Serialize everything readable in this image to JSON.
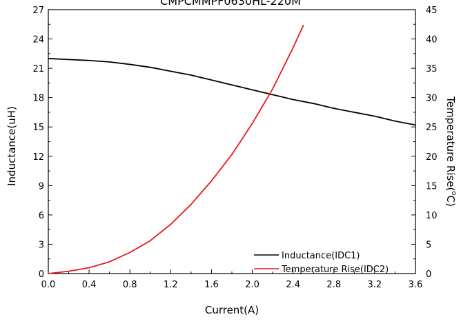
{
  "chart_data": {
    "type": "line",
    "title": "CMPCMMPF0630HL-220M",
    "xlabel": "Current(A)",
    "ylabel_left": "Inductance(uH)",
    "ylabel_right_main": "Temperature Rise(",
    "ylabel_right_sup": "o",
    "ylabel_right_end": "C)",
    "xlim": [
      0,
      3.6
    ],
    "ylim_left": [
      0,
      27
    ],
    "ylim_right": [
      0,
      45
    ],
    "x_ticks": [
      0.0,
      0.4,
      0.8,
      1.2,
      1.6,
      2.0,
      2.4,
      2.8,
      3.2,
      3.6
    ],
    "x_tick_labels": [
      "0.0",
      "0.4",
      "0.8",
      "1.2",
      "1.6",
      "2.0",
      "2.4",
      "2.8",
      "3.2",
      "3.6"
    ],
    "y_left_ticks": [
      0,
      3,
      6,
      9,
      12,
      15,
      18,
      21,
      24,
      27
    ],
    "y_left_tick_labels": [
      "0",
      "3",
      "6",
      "9",
      "12",
      "15",
      "18",
      "21",
      "24",
      "27"
    ],
    "y_right_ticks": [
      0,
      5,
      10,
      15,
      20,
      25,
      30,
      35,
      40,
      45
    ],
    "y_right_tick_labels": [
      "0",
      "5",
      "10",
      "15",
      "20",
      "25",
      "30",
      "35",
      "40",
      "45"
    ],
    "grid": false,
    "legend_position": "bottom-right",
    "series": [
      {
        "name": "Inductance(IDC1)",
        "axis": "left",
        "color": "#000000",
        "x": [
          0.0,
          0.2,
          0.4,
          0.6,
          0.8,
          1.0,
          1.2,
          1.4,
          1.6,
          1.8,
          2.0,
          2.2,
          2.4,
          2.6,
          2.8,
          3.0,
          3.2,
          3.4,
          3.6
        ],
        "y": [
          22.0,
          21.9,
          21.8,
          21.65,
          21.4,
          21.1,
          20.7,
          20.3,
          19.8,
          19.3,
          18.8,
          18.3,
          17.8,
          17.4,
          16.9,
          16.5,
          16.1,
          15.6,
          15.2
        ]
      },
      {
        "name": "Temperature Rise(IDC2)",
        "axis": "right",
        "color": "#e8171c",
        "x": [
          0.0,
          0.2,
          0.4,
          0.6,
          0.8,
          1.0,
          1.2,
          1.4,
          1.6,
          1.8,
          2.0,
          2.2,
          2.4,
          2.5
        ],
        "y": [
          0.0,
          0.4,
          1.0,
          2.0,
          3.6,
          5.6,
          8.4,
          11.8,
          15.8,
          20.3,
          25.6,
          31.5,
          38.5,
          42.3
        ]
      }
    ]
  }
}
